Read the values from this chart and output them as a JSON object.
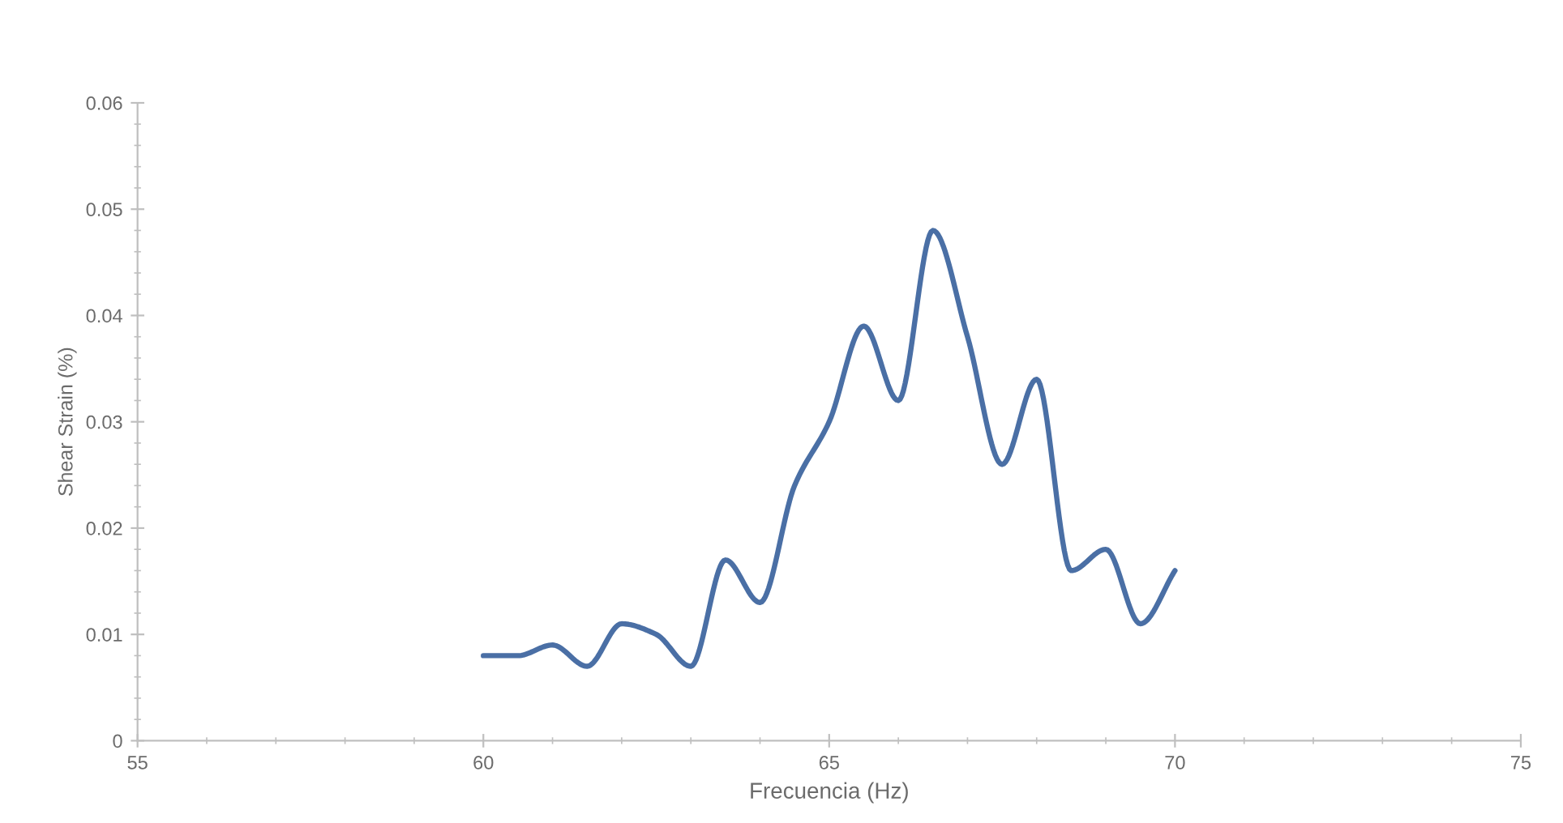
{
  "chart_data": {
    "type": "line",
    "xlabel": "Frecuencia (Hz)",
    "ylabel": "Shear Strain (%)",
    "x": [
      60,
      60.5,
      61,
      61.5,
      62,
      62.5,
      63,
      63.5,
      64,
      64.5,
      65,
      65.5,
      66,
      66.5,
      67,
      67.5,
      68,
      68.5,
      69,
      69.5,
      70
    ],
    "series": [
      {
        "color": "#4a6fa5",
        "values": [
          0.008,
          0.008,
          0.009,
          0.007,
          0.011,
          0.01,
          0.007,
          0.017,
          0.013,
          0.024,
          0.03,
          0.039,
          0.032,
          0.048,
          0.038,
          0.026,
          0.034,
          0.016,
          0.018,
          0.011,
          0.016
        ]
      }
    ],
    "xlim": [
      55,
      75
    ],
    "xticks": [
      55,
      60,
      65,
      70,
      75
    ],
    "ylim": [
      0,
      0.06
    ],
    "yticks": [
      0,
      0.01,
      0.02,
      0.03,
      0.04,
      0.05,
      0.06
    ],
    "grid": false,
    "marker": "none",
    "line_style": "solid"
  }
}
